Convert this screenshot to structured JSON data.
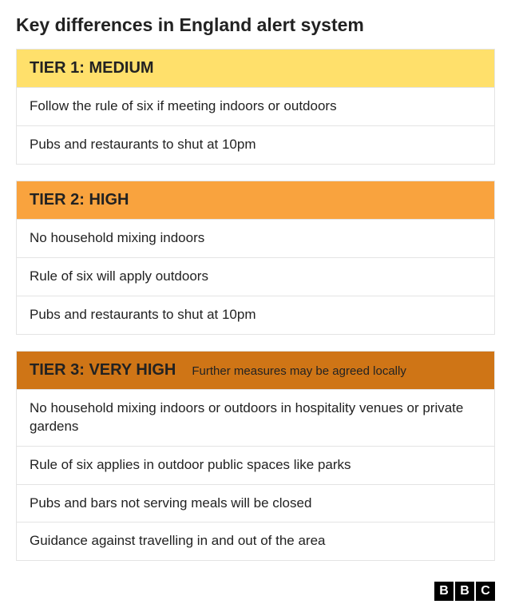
{
  "title": "Key differences in England alert system",
  "tiers": [
    {
      "header": "TIER 1: MEDIUM",
      "header_bg": "#ffe06b",
      "header_color": "#222222",
      "subtitle": "",
      "rules": [
        "Follow the rule of six if meeting indoors or outdoors",
        "Pubs and restaurants to shut at 10pm"
      ]
    },
    {
      "header": "TIER 2: HIGH",
      "header_bg": "#f9a33e",
      "header_color": "#222222",
      "subtitle": "",
      "rules": [
        "No household mixing indoors",
        "Rule of six will apply outdoors",
        "Pubs and restaurants to shut at 10pm"
      ]
    },
    {
      "header": "TIER 3: VERY HIGH",
      "header_bg": "#cf7516",
      "header_color": "#222222",
      "subtitle": "Further measures may be agreed locally",
      "rules": [
        "No household mixing indoors or outdoors in hospitality venues or private gardens",
        "Rule of six applies in outdoor public spaces like parks",
        "Pubs and bars not serving meals will be closed",
        "Guidance against travelling in and out of the area"
      ]
    }
  ],
  "logo": {
    "letters": [
      "B",
      "B",
      "C"
    ]
  },
  "styles": {
    "rule_border": "#e4e4e4",
    "text_color": "#222222",
    "background": "#ffffff",
    "title_fontsize": 23,
    "header_fontsize": 20,
    "rule_fontsize": 17
  }
}
